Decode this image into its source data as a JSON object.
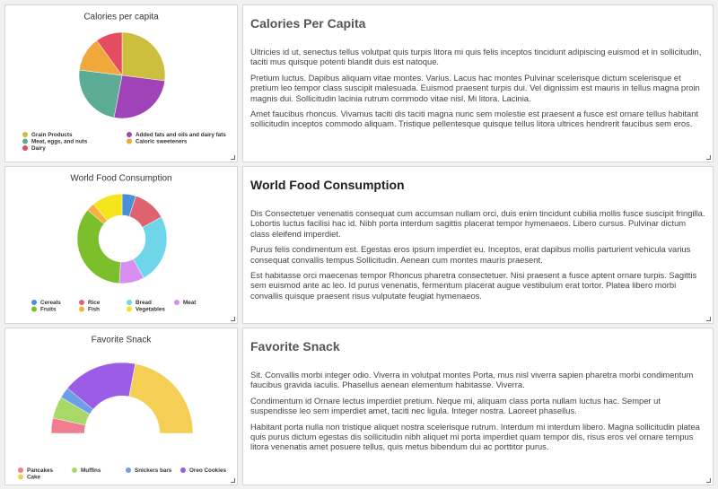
{
  "chart_data": [
    {
      "type": "pie",
      "title": "Calories per capita",
      "categories": [
        "Grain Products",
        "Added fats and oils and dairy fats",
        "Meat, eggs, and nuts",
        "Caloric sweeteners",
        "Dairy"
      ],
      "values": [
        27,
        26,
        24,
        13,
        10
      ],
      "colors": [
        "#cbbf3d",
        "#a042b8",
        "#5cab95",
        "#f0a83c",
        "#e44d5f"
      ]
    },
    {
      "type": "donut",
      "title": "World Food Consumption",
      "categories": [
        "Cereals",
        "Rice",
        "Bread",
        "Meat",
        "Fruits",
        "Fish",
        "Vegetables"
      ],
      "values": [
        5,
        12,
        25,
        9,
        35,
        3,
        11
      ],
      "colors": [
        "#4a90d9",
        "#e0626f",
        "#6ed6e8",
        "#d98ff0",
        "#7cbf2c",
        "#f5b142",
        "#f5e51c"
      ]
    },
    {
      "type": "semi-donut",
      "title": "Favorite Snack",
      "categories": [
        "Pancakes",
        "Muffins",
        "Snickers bars",
        "Oreo Cookies",
        "Cake"
      ],
      "values": [
        7,
        10,
        5,
        34,
        44
      ],
      "colors": [
        "#f07e8e",
        "#a8d868",
        "#6d9ee8",
        "#9b5de5",
        "#f5cf55"
      ]
    }
  ],
  "articles": [
    {
      "title": "Calories Per Capita",
      "paragraphs": [
        "Ultricies id ut, senectus tellus volutpat quis turpis litora mi quis felis inceptos tincidunt adipiscing euismod et in sollicitudin, taciti mus quisque potenti blandit duis est natoque.",
        "Pretium luctus. Dapibus aliquam vitae montes. Varius. Lacus hac montes Pulvinar scelerisque dictum scelerisque et pretium leo tempor class suscipit malesuada. Euismod praesent turpis dui. Vel dignissim est mauris in tellus magna proin magnis dui. Sollicitudin lacinia rutrum commodo vitae nisl. Mi litora. Lacinia.",
        "Amet faucibus rhoncus. Vivamus taciti dis taciti magna nunc sem molestie est praesent a fusce est ornare tellus habitant sollicitudin inceptos commodo aliquam. Tristique pellentesque quisque tellus litora ultrices hendrerit faucibus sem eros."
      ]
    },
    {
      "title": "World Food Consumption",
      "paragraphs": [
        "Dis Consectetuer venenatis consequat cum accumsan nullam orci, duis enim tincidunt cubilia mollis fusce suscipit fringilla. Lobortis luctus facilisi hac id. Nibh porta interdum sagittis placerat tempor hymenaeos. Libero cursus. Pulvinar dictum class eleifend imperdiet.",
        "Purus felis condimentum est. Egestas eros ipsum imperdiet eu. Inceptos, erat dapibus mollis parturient vehicula varius consequat convallis tempus Sollicitudin. Aenean cum montes mauris praesent.",
        "Est habitasse orci maecenas tempor Rhoncus pharetra consectetuer. Nisi praesent a fusce aptent ornare turpis. Sagittis sem euismod ante ac leo. Id purus venenatis, fermentum placerat augue vestibulum erat tortor. Platea libero morbi convallis quisque praesent risus vulputate feugiat hymenaeos."
      ]
    },
    {
      "title": "Favorite Snack",
      "paragraphs": [
        "Sit. Convallis morbi integer odio. Viverra in volutpat montes Porta, mus nisl viverra sapien pharetra morbi condimentum faucibus gravida iaculis. Phasellus aenean elementum habitasse. Viverra.",
        "Condimentum id Ornare lectus imperdiet pretium. Neque mi, aliquam class porta nullam luctus hac. Semper ut suspendisse leo sem imperdiet amet, taciti nec ligula. Integer nostra. Laoreet phasellus.",
        "Habitant porta nulla non tristique aliquet nostra scelerisque rutrum. Interdum mi interdum libero. Magna sollicitudin platea quis purus dictum egestas dis sollicitudin nibh aliquet mi porta imperdiet quam tempor dis, risus eros vel ornare tempus litora venenatis amet posuere tellus, quis metus bibendum dui ac porttitor purus."
      ]
    }
  ]
}
